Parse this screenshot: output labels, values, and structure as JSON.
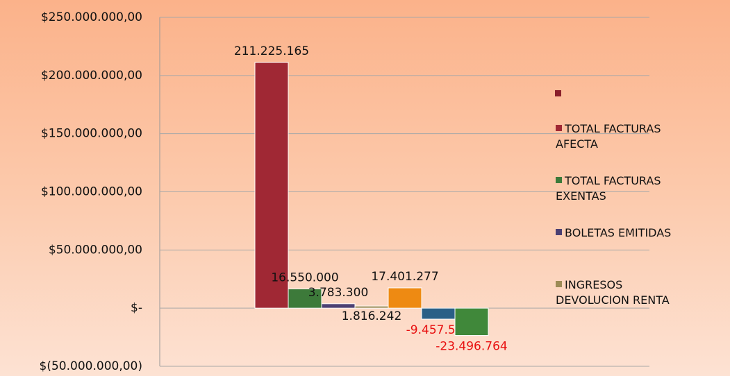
{
  "chart_data": {
    "type": "bar",
    "ylim": [
      -50000000,
      250000000
    ],
    "yticks": [
      {
        "value": -50000000,
        "label": "$(50.000.000,00)"
      },
      {
        "value": 0,
        "label": "$-"
      },
      {
        "value": 50000000,
        "label": "$50.000.000,00"
      },
      {
        "value": 100000000,
        "label": "$100.000.000,00"
      },
      {
        "value": 150000000,
        "label": "$150.000.000,00"
      },
      {
        "value": 200000000,
        "label": "$200.000.000,00"
      },
      {
        "value": 250000000,
        "label": "$250.000.000,00"
      }
    ],
    "grid": true,
    "legend": "right",
    "series": [
      {
        "name": "TOTAL FACTURAS AFECTA",
        "color": "#a02834",
        "values": [
          211225165
        ],
        "value_labels": [
          "211.225.165"
        ]
      },
      {
        "name": "TOTAL FACTURAS EXENTAS",
        "color": "#3d7a3a",
        "values": [
          16550000
        ],
        "value_labels": [
          "16.550.000"
        ]
      },
      {
        "name": "BOLETAS EMITIDAS",
        "color": "#4b3f72",
        "values": [
          3783300
        ],
        "value_labels": [
          "3.783.300"
        ]
      },
      {
        "name": "INGRESOS DEVOLUCION RENTA",
        "color": "#9c8b56",
        "values": [
          1816242
        ],
        "value_labels": [
          "1.816.242"
        ]
      },
      {
        "color": "#ee8a12",
        "values": [
          17401277
        ],
        "value_labels": [
          "17.401.277"
        ]
      },
      {
        "color": "#2a5f86",
        "values": [
          -9457561
        ],
        "value_labels": [
          "-9.457.561"
        ]
      },
      {
        "color": "#40883a",
        "values": [
          -23496764
        ],
        "value_labels": [
          "-23.496.764"
        ]
      }
    ]
  }
}
